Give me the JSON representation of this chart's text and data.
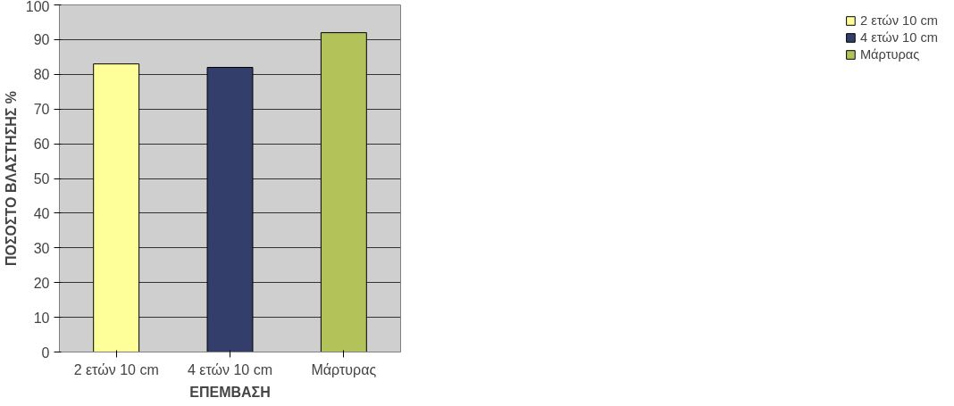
{
  "chart_data": {
    "type": "bar",
    "xlabel": "ΕΠΕΜΒΑΣΗ",
    "ylabel": "ΠΟΣΟΣΤΟ ΒΛΑΣΤΗΣΗΣ %",
    "categories": [
      "2 ετών 10 cm",
      "4 ετών 10 cm",
      "Μάρτυρας"
    ],
    "series": [
      {
        "name": "2 ετών 10 cm",
        "color": "#ffff99",
        "values": [
          83,
          null,
          null
        ]
      },
      {
        "name": "4 ετών 10 cm",
        "color": "#333f6a",
        "values": [
          null,
          82,
          null
        ]
      },
      {
        "name": "Μάρτυρας",
        "color": "#b4c25a",
        "values": [
          null,
          null,
          92
        ]
      }
    ],
    "ylim": [
      0,
      100
    ],
    "yticks": [
      0,
      10,
      20,
      30,
      40,
      50,
      60,
      70,
      80,
      90,
      100
    ],
    "grid": "y",
    "legend": "right"
  }
}
